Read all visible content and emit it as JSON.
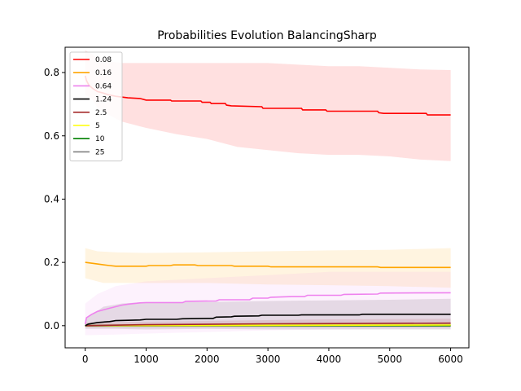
{
  "chart_data": {
    "type": "line",
    "title": "Probabilities Evolution BalancingSharp",
    "xlabel": "",
    "ylabel": "",
    "xlim": [
      -330,
      6300
    ],
    "ylim": [
      -0.07,
      0.88
    ],
    "x_ticks": [
      0,
      1000,
      2000,
      3000,
      4000,
      5000,
      6000
    ],
    "y_ticks": [
      0.0,
      0.2,
      0.4,
      0.6,
      0.8
    ],
    "legend_position": "upper left",
    "grid": false,
    "series": [
      {
        "name": "0.08",
        "color": "#ff0000",
        "band_color": "#ff0000",
        "band_opacity": 0.12,
        "mean": [
          [
            0,
            0.79
          ],
          [
            20,
            0.775
          ],
          [
            60,
            0.76
          ],
          [
            120,
            0.75
          ],
          [
            200,
            0.74
          ],
          [
            300,
            0.735
          ],
          [
            380,
            0.73
          ],
          [
            500,
            0.725
          ],
          [
            700,
            0.72
          ],
          [
            900,
            0.718
          ],
          [
            1000,
            0.713
          ],
          [
            1400,
            0.713
          ],
          [
            1420,
            0.71
          ],
          [
            1900,
            0.71
          ],
          [
            1920,
            0.706
          ],
          [
            2050,
            0.706
          ],
          [
            2070,
            0.702
          ],
          [
            2300,
            0.702
          ],
          [
            2320,
            0.697
          ],
          [
            2400,
            0.695
          ],
          [
            2900,
            0.692
          ],
          [
            2920,
            0.687
          ],
          [
            3550,
            0.687
          ],
          [
            3570,
            0.682
          ],
          [
            3950,
            0.682
          ],
          [
            3970,
            0.678
          ],
          [
            4800,
            0.678
          ],
          [
            4820,
            0.673
          ],
          [
            4900,
            0.671
          ],
          [
            5600,
            0.671
          ],
          [
            5620,
            0.666
          ],
          [
            6000,
            0.666
          ]
        ],
        "upper": [
          [
            0,
            0.87
          ],
          [
            100,
            0.86
          ],
          [
            200,
            0.845
          ],
          [
            400,
            0.835
          ],
          [
            600,
            0.83
          ],
          [
            1000,
            0.83
          ],
          [
            1500,
            0.83
          ],
          [
            2000,
            0.83
          ],
          [
            2500,
            0.83
          ],
          [
            3000,
            0.83
          ],
          [
            3500,
            0.825
          ],
          [
            4000,
            0.82
          ],
          [
            4500,
            0.82
          ],
          [
            5000,
            0.815
          ],
          [
            5500,
            0.81
          ],
          [
            6000,
            0.808
          ]
        ],
        "lower": [
          [
            0,
            0.73
          ],
          [
            100,
            0.72
          ],
          [
            200,
            0.69
          ],
          [
            400,
            0.665
          ],
          [
            600,
            0.645
          ],
          [
            900,
            0.63
          ],
          [
            1000,
            0.625
          ],
          [
            1500,
            0.605
          ],
          [
            2000,
            0.59
          ],
          [
            2500,
            0.565
          ],
          [
            3000,
            0.555
          ],
          [
            3500,
            0.545
          ],
          [
            4000,
            0.54
          ],
          [
            4500,
            0.54
          ],
          [
            5000,
            0.535
          ],
          [
            5500,
            0.525
          ],
          [
            6000,
            0.52
          ]
        ]
      },
      {
        "name": "0.16",
        "color": "#ffa500",
        "band_color": "#ffa500",
        "band_opacity": 0.12,
        "mean": [
          [
            0,
            0.2
          ],
          [
            200,
            0.195
          ],
          [
            400,
            0.19
          ],
          [
            500,
            0.188
          ],
          [
            1000,
            0.188
          ],
          [
            1050,
            0.19
          ],
          [
            1400,
            0.19
          ],
          [
            1450,
            0.192
          ],
          [
            1800,
            0.192
          ],
          [
            1850,
            0.19
          ],
          [
            2400,
            0.19
          ],
          [
            2450,
            0.188
          ],
          [
            3000,
            0.188
          ],
          [
            3050,
            0.186
          ],
          [
            4800,
            0.186
          ],
          [
            4850,
            0.184
          ],
          [
            6000,
            0.184
          ]
        ],
        "upper": [
          [
            0,
            0.245
          ],
          [
            200,
            0.235
          ],
          [
            500,
            0.232
          ],
          [
            1000,
            0.23
          ],
          [
            2000,
            0.232
          ],
          [
            3000,
            0.235
          ],
          [
            4000,
            0.238
          ],
          [
            5000,
            0.24
          ],
          [
            6000,
            0.245
          ]
        ],
        "lower": [
          [
            0,
            0.15
          ],
          [
            300,
            0.135
          ],
          [
            600,
            0.135
          ],
          [
            1000,
            0.135
          ],
          [
            2000,
            0.135
          ],
          [
            3000,
            0.13
          ],
          [
            4000,
            0.128
          ],
          [
            5000,
            0.125
          ],
          [
            6000,
            0.12
          ]
        ]
      },
      {
        "name": "0.64",
        "color": "#ee82ee",
        "band_color": "#ee82ee",
        "band_opacity": 0.1,
        "mean": [
          [
            0,
            0.005
          ],
          [
            20,
            0.025
          ],
          [
            100,
            0.035
          ],
          [
            200,
            0.045
          ],
          [
            300,
            0.05
          ],
          [
            400,
            0.055
          ],
          [
            500,
            0.06
          ],
          [
            600,
            0.065
          ],
          [
            700,
            0.068
          ],
          [
            900,
            0.072
          ],
          [
            1000,
            0.073
          ],
          [
            1600,
            0.073
          ],
          [
            1650,
            0.077
          ],
          [
            2150,
            0.078
          ],
          [
            2200,
            0.082
          ],
          [
            2700,
            0.082
          ],
          [
            2750,
            0.087
          ],
          [
            3000,
            0.087
          ],
          [
            3050,
            0.09
          ],
          [
            3400,
            0.092
          ],
          [
            3600,
            0.092
          ],
          [
            3650,
            0.096
          ],
          [
            4200,
            0.096
          ],
          [
            4250,
            0.099
          ],
          [
            4800,
            0.1
          ],
          [
            4850,
            0.103
          ],
          [
            6000,
            0.104
          ]
        ],
        "upper": [
          [
            0,
            0.07
          ],
          [
            200,
            0.1
          ],
          [
            500,
            0.125
          ],
          [
            1000,
            0.14
          ],
          [
            1500,
            0.145
          ],
          [
            2000,
            0.15
          ],
          [
            2500,
            0.155
          ],
          [
            3000,
            0.16
          ],
          [
            3500,
            0.165
          ],
          [
            4000,
            0.17
          ],
          [
            4500,
            0.17
          ],
          [
            5000,
            0.17
          ],
          [
            6000,
            0.17
          ]
        ],
        "lower": [
          [
            0,
            -0.03
          ],
          [
            500,
            -0.028
          ],
          [
            1000,
            -0.025
          ],
          [
            2000,
            -0.02
          ],
          [
            3000,
            -0.015
          ],
          [
            4000,
            -0.012
          ],
          [
            5000,
            -0.01
          ],
          [
            6000,
            -0.01
          ]
        ]
      },
      {
        "name": "1.24",
        "color": "#000000",
        "band_color": "#3c2a3c",
        "band_opacity": 0.12,
        "mean": [
          [
            0,
            0.0
          ],
          [
            50,
            0.005
          ],
          [
            200,
            0.01
          ],
          [
            400,
            0.013
          ],
          [
            500,
            0.016
          ],
          [
            900,
            0.018
          ],
          [
            1000,
            0.02
          ],
          [
            1500,
            0.02
          ],
          [
            1600,
            0.022
          ],
          [
            2100,
            0.023
          ],
          [
            2150,
            0.027
          ],
          [
            2400,
            0.028
          ],
          [
            2450,
            0.03
          ],
          [
            2850,
            0.031
          ],
          [
            2900,
            0.033
          ],
          [
            3500,
            0.033
          ],
          [
            3550,
            0.034
          ],
          [
            4500,
            0.034
          ],
          [
            4550,
            0.036
          ],
          [
            6000,
            0.036
          ]
        ],
        "upper": [
          [
            0,
            0.02
          ],
          [
            300,
            0.06
          ],
          [
            600,
            0.07
          ],
          [
            1000,
            0.075
          ],
          [
            2000,
            0.075
          ],
          [
            3000,
            0.078
          ],
          [
            4000,
            0.08
          ],
          [
            5000,
            0.082
          ],
          [
            6000,
            0.085
          ]
        ],
        "lower": [
          [
            0,
            -0.01
          ],
          [
            500,
            -0.01
          ],
          [
            1000,
            -0.012
          ],
          [
            2000,
            -0.01
          ],
          [
            3000,
            -0.012
          ],
          [
            4000,
            -0.012
          ],
          [
            5000,
            -0.012
          ],
          [
            6000,
            -0.012
          ]
        ]
      },
      {
        "name": "2.5",
        "color": "#a52a2a",
        "band_color": "#a52a2a",
        "band_opacity": 0.12,
        "mean": [
          [
            0,
            0.0
          ],
          [
            1000,
            0.003
          ],
          [
            3000,
            0.006
          ],
          [
            6000,
            0.008
          ]
        ],
        "upper": [
          [
            0,
            0.01
          ],
          [
            2000,
            0.015
          ],
          [
            4000,
            0.02
          ],
          [
            6000,
            0.022
          ]
        ],
        "lower": [
          [
            0,
            -0.005
          ],
          [
            6000,
            -0.005
          ]
        ]
      },
      {
        "name": "5",
        "color": "#ffff00",
        "band_color": "#ffff00",
        "band_opacity": 0.1,
        "mean": [
          [
            0,
            0.0
          ],
          [
            6000,
            0.002
          ]
        ],
        "upper": [
          [
            0,
            0.005
          ],
          [
            6000,
            0.008
          ]
        ],
        "lower": [
          [
            0,
            -0.003
          ],
          [
            6000,
            -0.003
          ]
        ]
      },
      {
        "name": "10",
        "color": "#008000",
        "band_color": "#008000",
        "band_opacity": 0.1,
        "mean": [
          [
            0,
            0.0
          ],
          [
            6000,
            0.0
          ]
        ],
        "upper": [
          [
            0,
            0.004
          ],
          [
            6000,
            0.006
          ]
        ],
        "lower": [
          [
            0,
            -0.003
          ],
          [
            6000,
            -0.003
          ]
        ]
      },
      {
        "name": "25",
        "color": "#808080",
        "band_color": "#808080",
        "band_opacity": 0.15,
        "mean": [
          [
            0,
            0.0
          ],
          [
            6000,
            0.0
          ]
        ],
        "upper": [
          [
            0,
            0.004
          ],
          [
            6000,
            0.005
          ]
        ],
        "lower": [
          [
            0,
            -0.004
          ],
          [
            6000,
            -0.004
          ]
        ]
      }
    ]
  }
}
